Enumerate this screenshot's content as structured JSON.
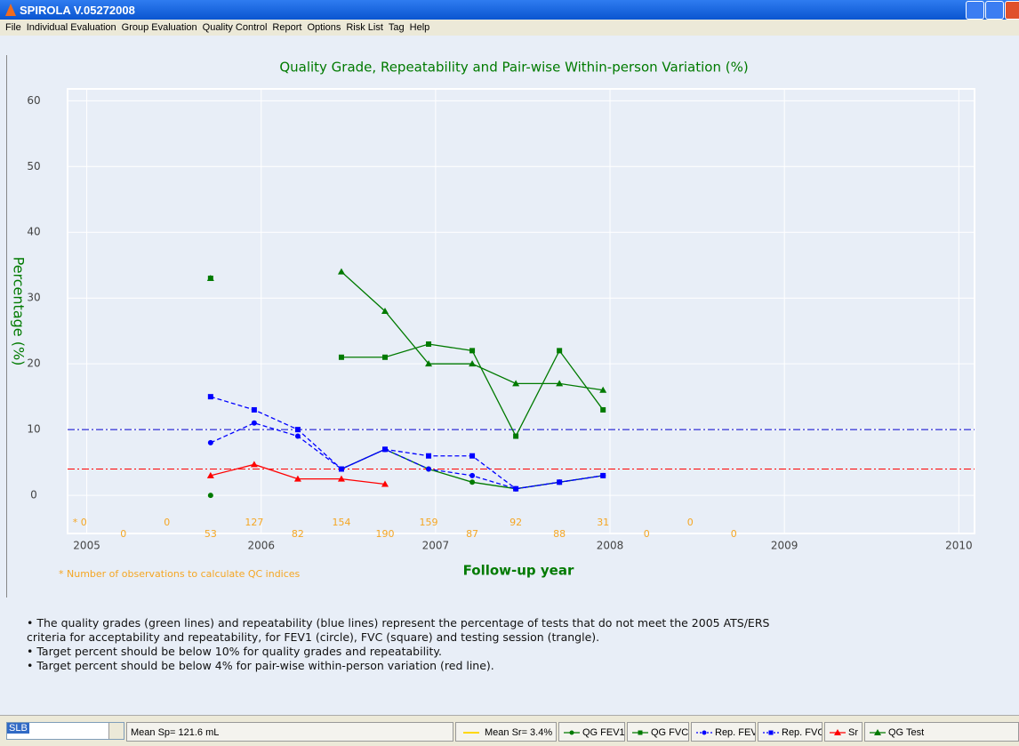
{
  "window": {
    "title": "SPIROLA V.05272008"
  },
  "menu": [
    "File",
    "Individual Evaluation",
    "Group Evaluation",
    "Quality Control",
    "Report",
    "Options",
    "Risk List",
    "Tag",
    "Help"
  ],
  "chart_data": {
    "type": "line",
    "title": "Quality Grade, Repeatability and Pair-wise Within-person Variation (%)",
    "y_label": "Percentage (%)",
    "x_label": "Follow-up year",
    "footnote": "* Number of observations to calculate QC indices",
    "x": [
      2005.71,
      2005.96,
      2006.21,
      2006.46,
      2006.71,
      2006.96,
      2007.21,
      2007.46,
      2007.71,
      2007.96
    ],
    "xlim": [
      2004.89,
      2010.09
    ],
    "xticks": [
      2005,
      2006,
      2007,
      2008,
      2009,
      2010
    ],
    "ylim": [
      -5.8,
      61.8
    ],
    "yticks": [
      0,
      10,
      20,
      30,
      40,
      50,
      60
    ],
    "grid": true,
    "series": [
      {
        "name": "QG FEV1",
        "color": "#007a00",
        "marker": "circle",
        "dash": false,
        "values": [
          0,
          null,
          null,
          4,
          7,
          4,
          2,
          1,
          2,
          3
        ]
      },
      {
        "name": "QG FVC",
        "color": "#007a00",
        "marker": "square",
        "dash": false,
        "values": [
          33,
          null,
          null,
          21,
          21,
          23,
          22,
          9,
          22,
          13
        ]
      },
      {
        "name": "Rep. FEV1",
        "color": "#0000ff",
        "marker": "circle",
        "dash": true,
        "values": [
          8,
          11,
          9,
          4,
          7,
          4,
          3,
          1,
          2,
          3
        ]
      },
      {
        "name": "Rep. FVC",
        "color": "#0000ff",
        "marker": "square",
        "dash": true,
        "values": [
          15,
          13,
          10,
          4,
          7,
          6,
          6,
          1,
          2,
          3
        ]
      },
      {
        "name": "Sr",
        "color": "#ff0000",
        "marker": "triangle",
        "dash": false,
        "values": [
          3,
          4.7,
          2.5,
          2.5,
          1.7,
          null,
          null,
          null,
          null,
          null
        ]
      },
      {
        "name": "QG Test",
        "color": "#007a00",
        "marker": "triangle",
        "dash": false,
        "values": [
          33,
          null,
          null,
          34,
          28,
          20,
          20,
          17,
          17,
          16
        ]
      }
    ],
    "reference_lines": [
      {
        "value": 10,
        "color": "#0000cc"
      },
      {
        "value": 4,
        "color": "#ff0000"
      }
    ],
    "observations": {
      "color": "#f5a623",
      "x": [
        2004.96,
        2005.21,
        2005.46,
        2005.71,
        2005.96,
        2006.21,
        2006.46,
        2006.71,
        2006.96,
        2007.21,
        2007.46,
        2007.71,
        2007.96,
        2008.21,
        2008.46,
        2008.71
      ],
      "labels": [
        "* 0",
        "0",
        "0",
        "53",
        "127",
        "82",
        "154",
        "190",
        "159",
        "87",
        "92",
        "88",
        "31",
        "0",
        "0",
        "0"
      ]
    }
  },
  "notes": [
    "• The quality grades (green lines) and repeatability (blue lines) represent the percentage of tests that do not meet the 2005 ATS/ERS",
    "criteria for acceptability and repeatability, for FEV1 (circle), FVC (square) and testing session (trangle).",
    "• Target percent should be below 10% for quality grades and repeatability.",
    "• Target percent should be below  4% for pair-wise within-person variation (red line)."
  ],
  "status": {
    "combo": "SLB",
    "mean_sp": "Mean Sp= 121.6 mL",
    "mean_sr": "Mean Sr= 3.4%"
  }
}
